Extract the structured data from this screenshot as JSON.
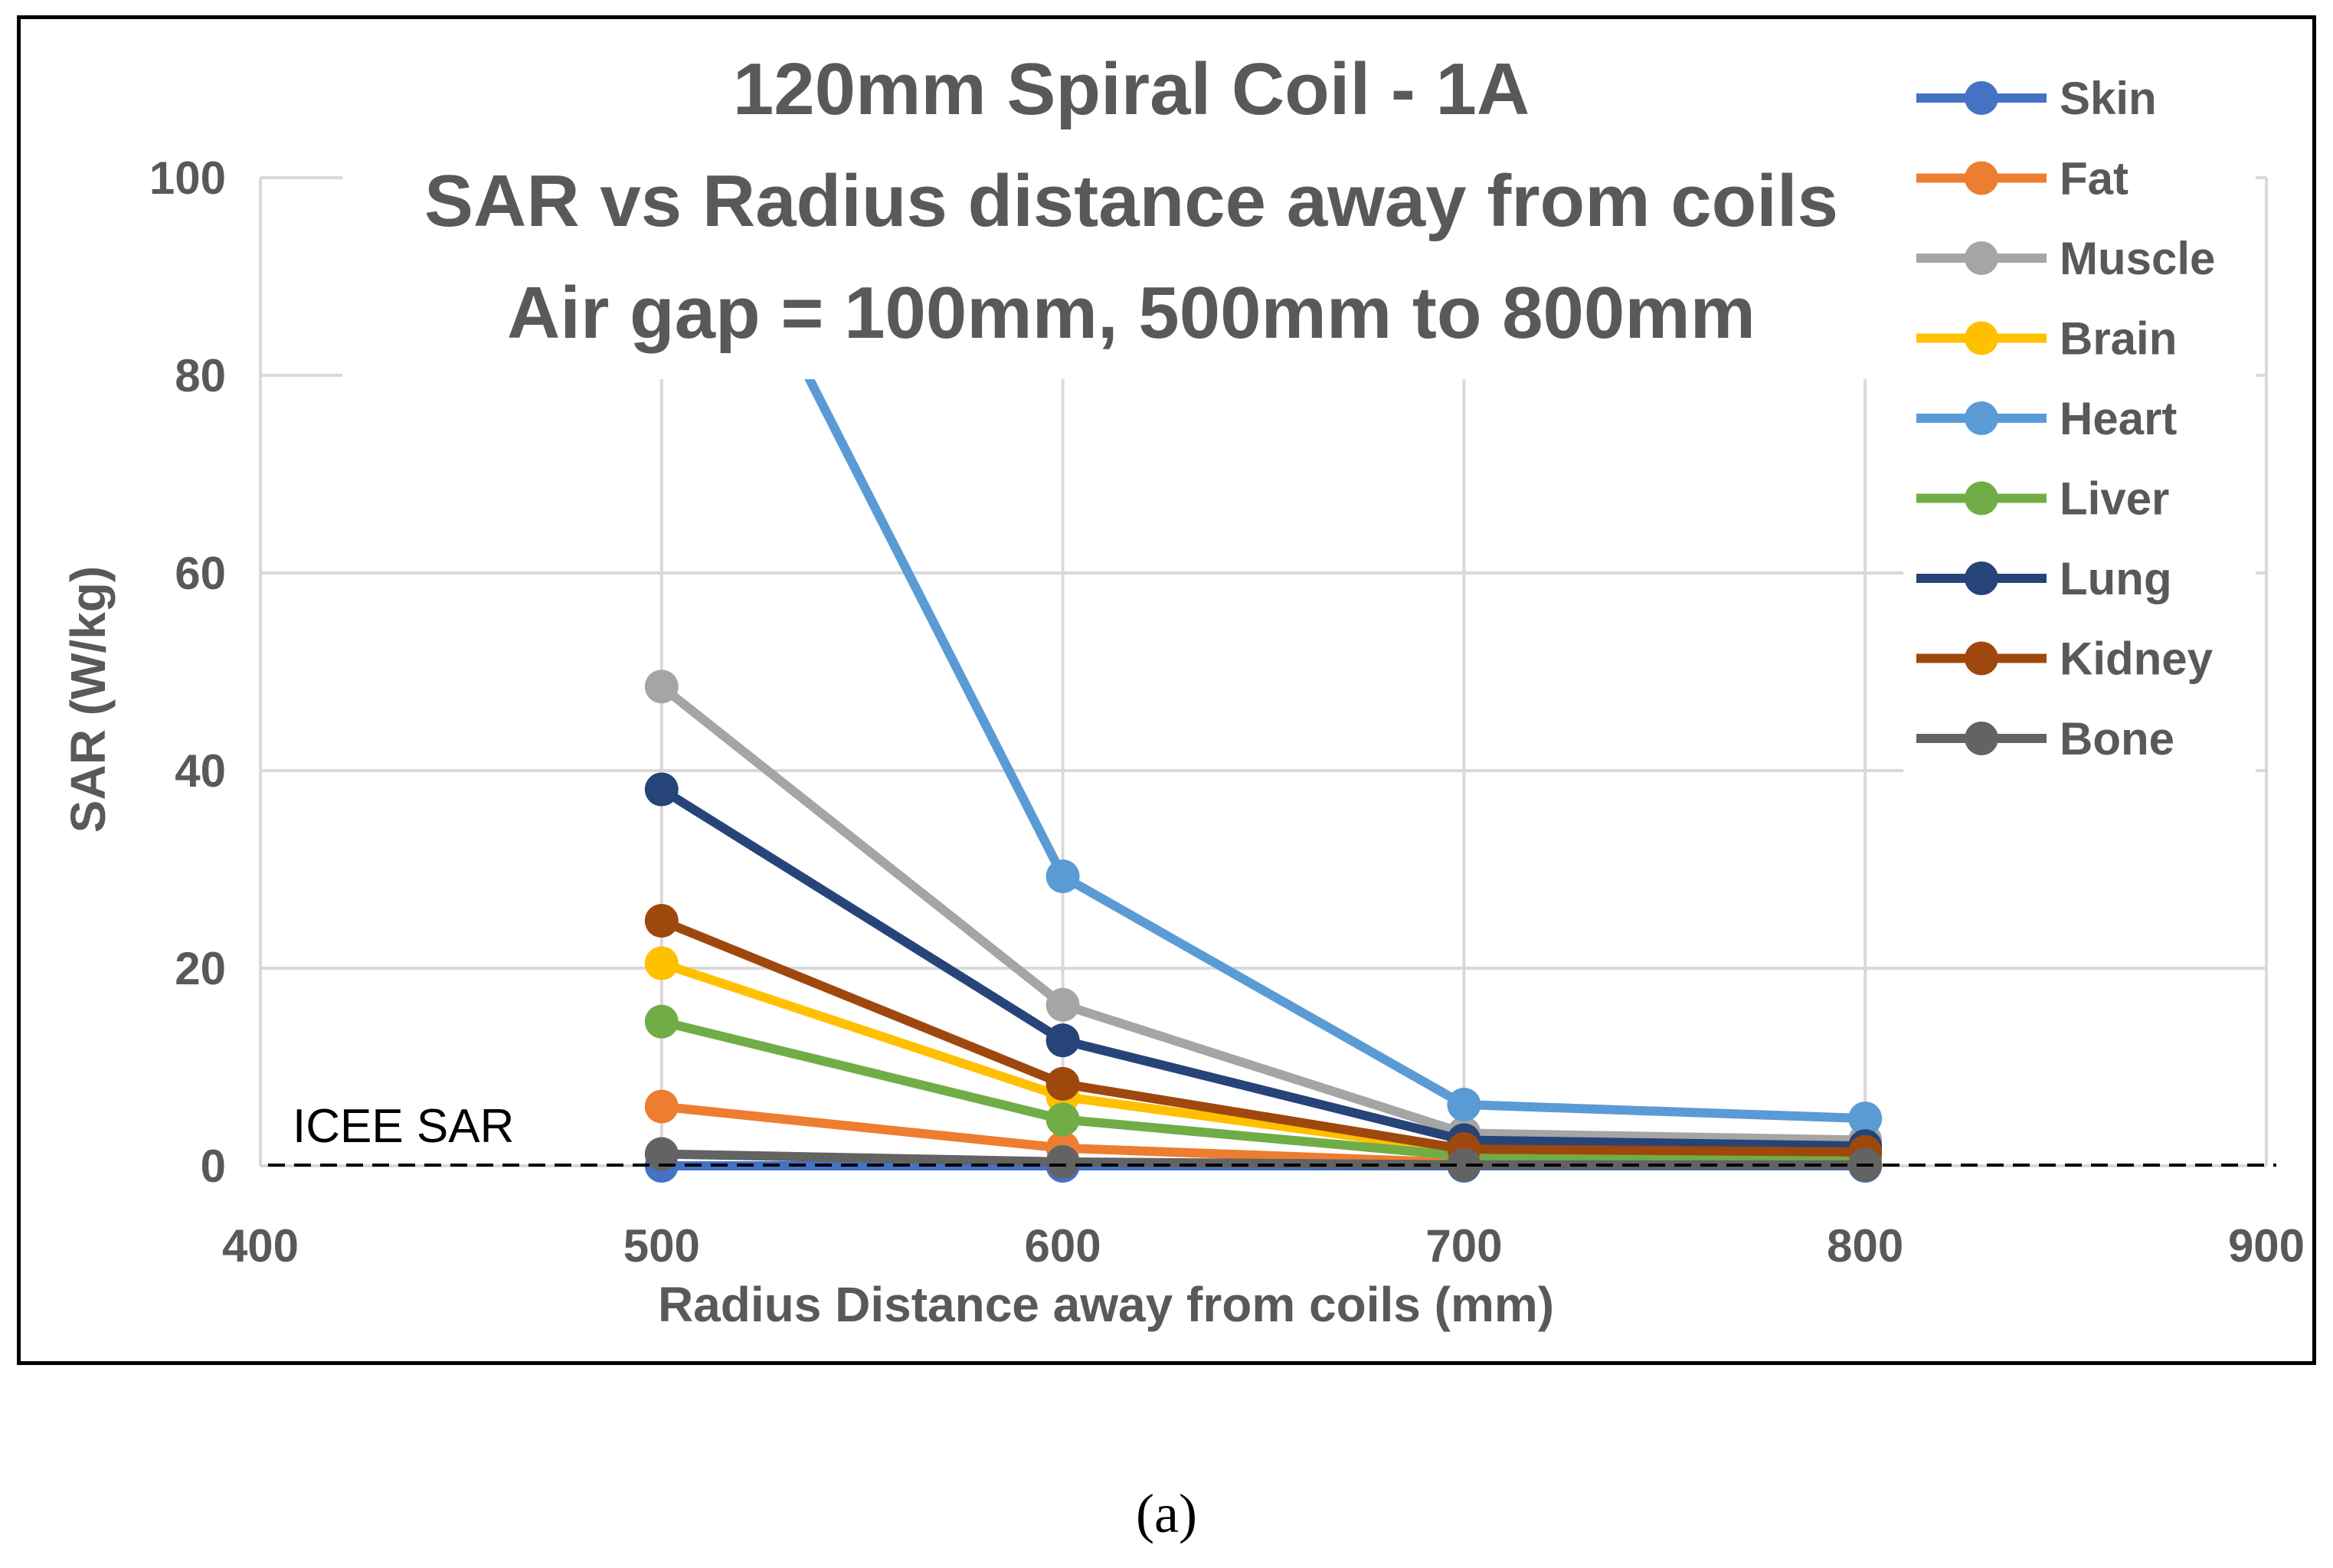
{
  "chart_data": {
    "type": "line",
    "title_lines": [
      "120mm Spiral Coil - 1A",
      "SAR vs Radius distance away from coils",
      "Air gap = 100mm, 500mm to 800mm"
    ],
    "xlabel": "Radius Distance away from coils (mm)",
    "ylabel": "SAR (W/kg)",
    "xlim": [
      400,
      900
    ],
    "ylim": [
      0,
      100
    ],
    "x_ticks": [
      400,
      500,
      600,
      700,
      800,
      900
    ],
    "y_ticks": [
      0,
      20,
      40,
      60,
      80,
      100
    ],
    "grid": true,
    "legend_position": "right",
    "x": [
      500,
      600,
      700,
      800
    ],
    "series": [
      {
        "name": "Skin",
        "color": "#4472C4",
        "values": [
          0,
          0,
          0,
          0
        ]
      },
      {
        "name": "Fat",
        "color": "#ED7D31",
        "values": [
          6,
          1.8,
          0.3,
          0.2
        ]
      },
      {
        "name": "Muscle",
        "color": "#A5A5A5",
        "values": [
          48.5,
          16.3,
          3.3,
          2.6
        ]
      },
      {
        "name": "Brain",
        "color": "#FFC000",
        "values": [
          20.5,
          7,
          1.5,
          1.2
        ]
      },
      {
        "name": "Heart",
        "color": "#5B9BD5",
        "values": [
          109,
          29.3,
          6.2,
          4.8
        ]
      },
      {
        "name": "Liver",
        "color": "#70AD47",
        "values": [
          14.6,
          4.7,
          1,
          0.8
        ]
      },
      {
        "name": "Lung",
        "color": "#264478",
        "values": [
          38.1,
          12.7,
          2.6,
          2
        ]
      },
      {
        "name": "Kidney",
        "color": "#9E480E",
        "values": [
          24.8,
          8.3,
          1.7,
          1.4
        ]
      },
      {
        "name": "Bone",
        "color": "#636363",
        "values": [
          1.2,
          0.4,
          0.1,
          0.1
        ]
      }
    ],
    "reference_line": {
      "label": "ICEE SAR",
      "value": 0.08
    }
  },
  "caption": "(a)"
}
